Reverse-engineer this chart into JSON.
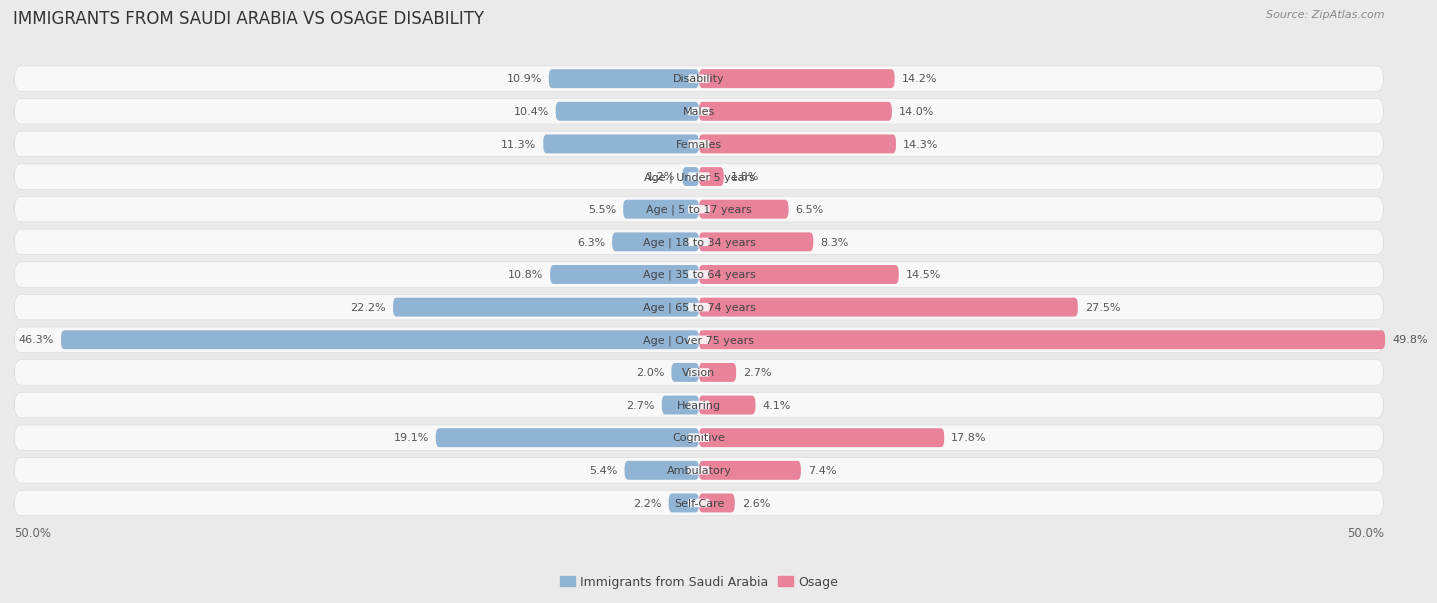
{
  "title": "IMMIGRANTS FROM SAUDI ARABIA VS OSAGE DISABILITY",
  "source": "Source: ZipAtlas.com",
  "categories": [
    "Disability",
    "Males",
    "Females",
    "Age | Under 5 years",
    "Age | 5 to 17 years",
    "Age | 18 to 34 years",
    "Age | 35 to 64 years",
    "Age | 65 to 74 years",
    "Age | Over 75 years",
    "Vision",
    "Hearing",
    "Cognitive",
    "Ambulatory",
    "Self-Care"
  ],
  "left_values": [
    10.9,
    10.4,
    11.3,
    1.2,
    5.5,
    6.3,
    10.8,
    22.2,
    46.3,
    2.0,
    2.7,
    19.1,
    5.4,
    2.2
  ],
  "right_values": [
    14.2,
    14.0,
    14.3,
    1.8,
    6.5,
    8.3,
    14.5,
    27.5,
    49.8,
    2.7,
    4.1,
    17.8,
    7.4,
    2.6
  ],
  "left_color": "#92b4d4",
  "right_color": "#e8839a",
  "left_label": "Immigrants from Saudi Arabia",
  "right_label": "Osage",
  "max_val": 50.0,
  "background_color": "#eaeaea",
  "bar_bg_color": "#f7f7f7",
  "row_bg_color": "#f0f0f0",
  "title_fontsize": 12,
  "label_fontsize": 8,
  "value_fontsize": 8,
  "legend_fontsize": 9
}
